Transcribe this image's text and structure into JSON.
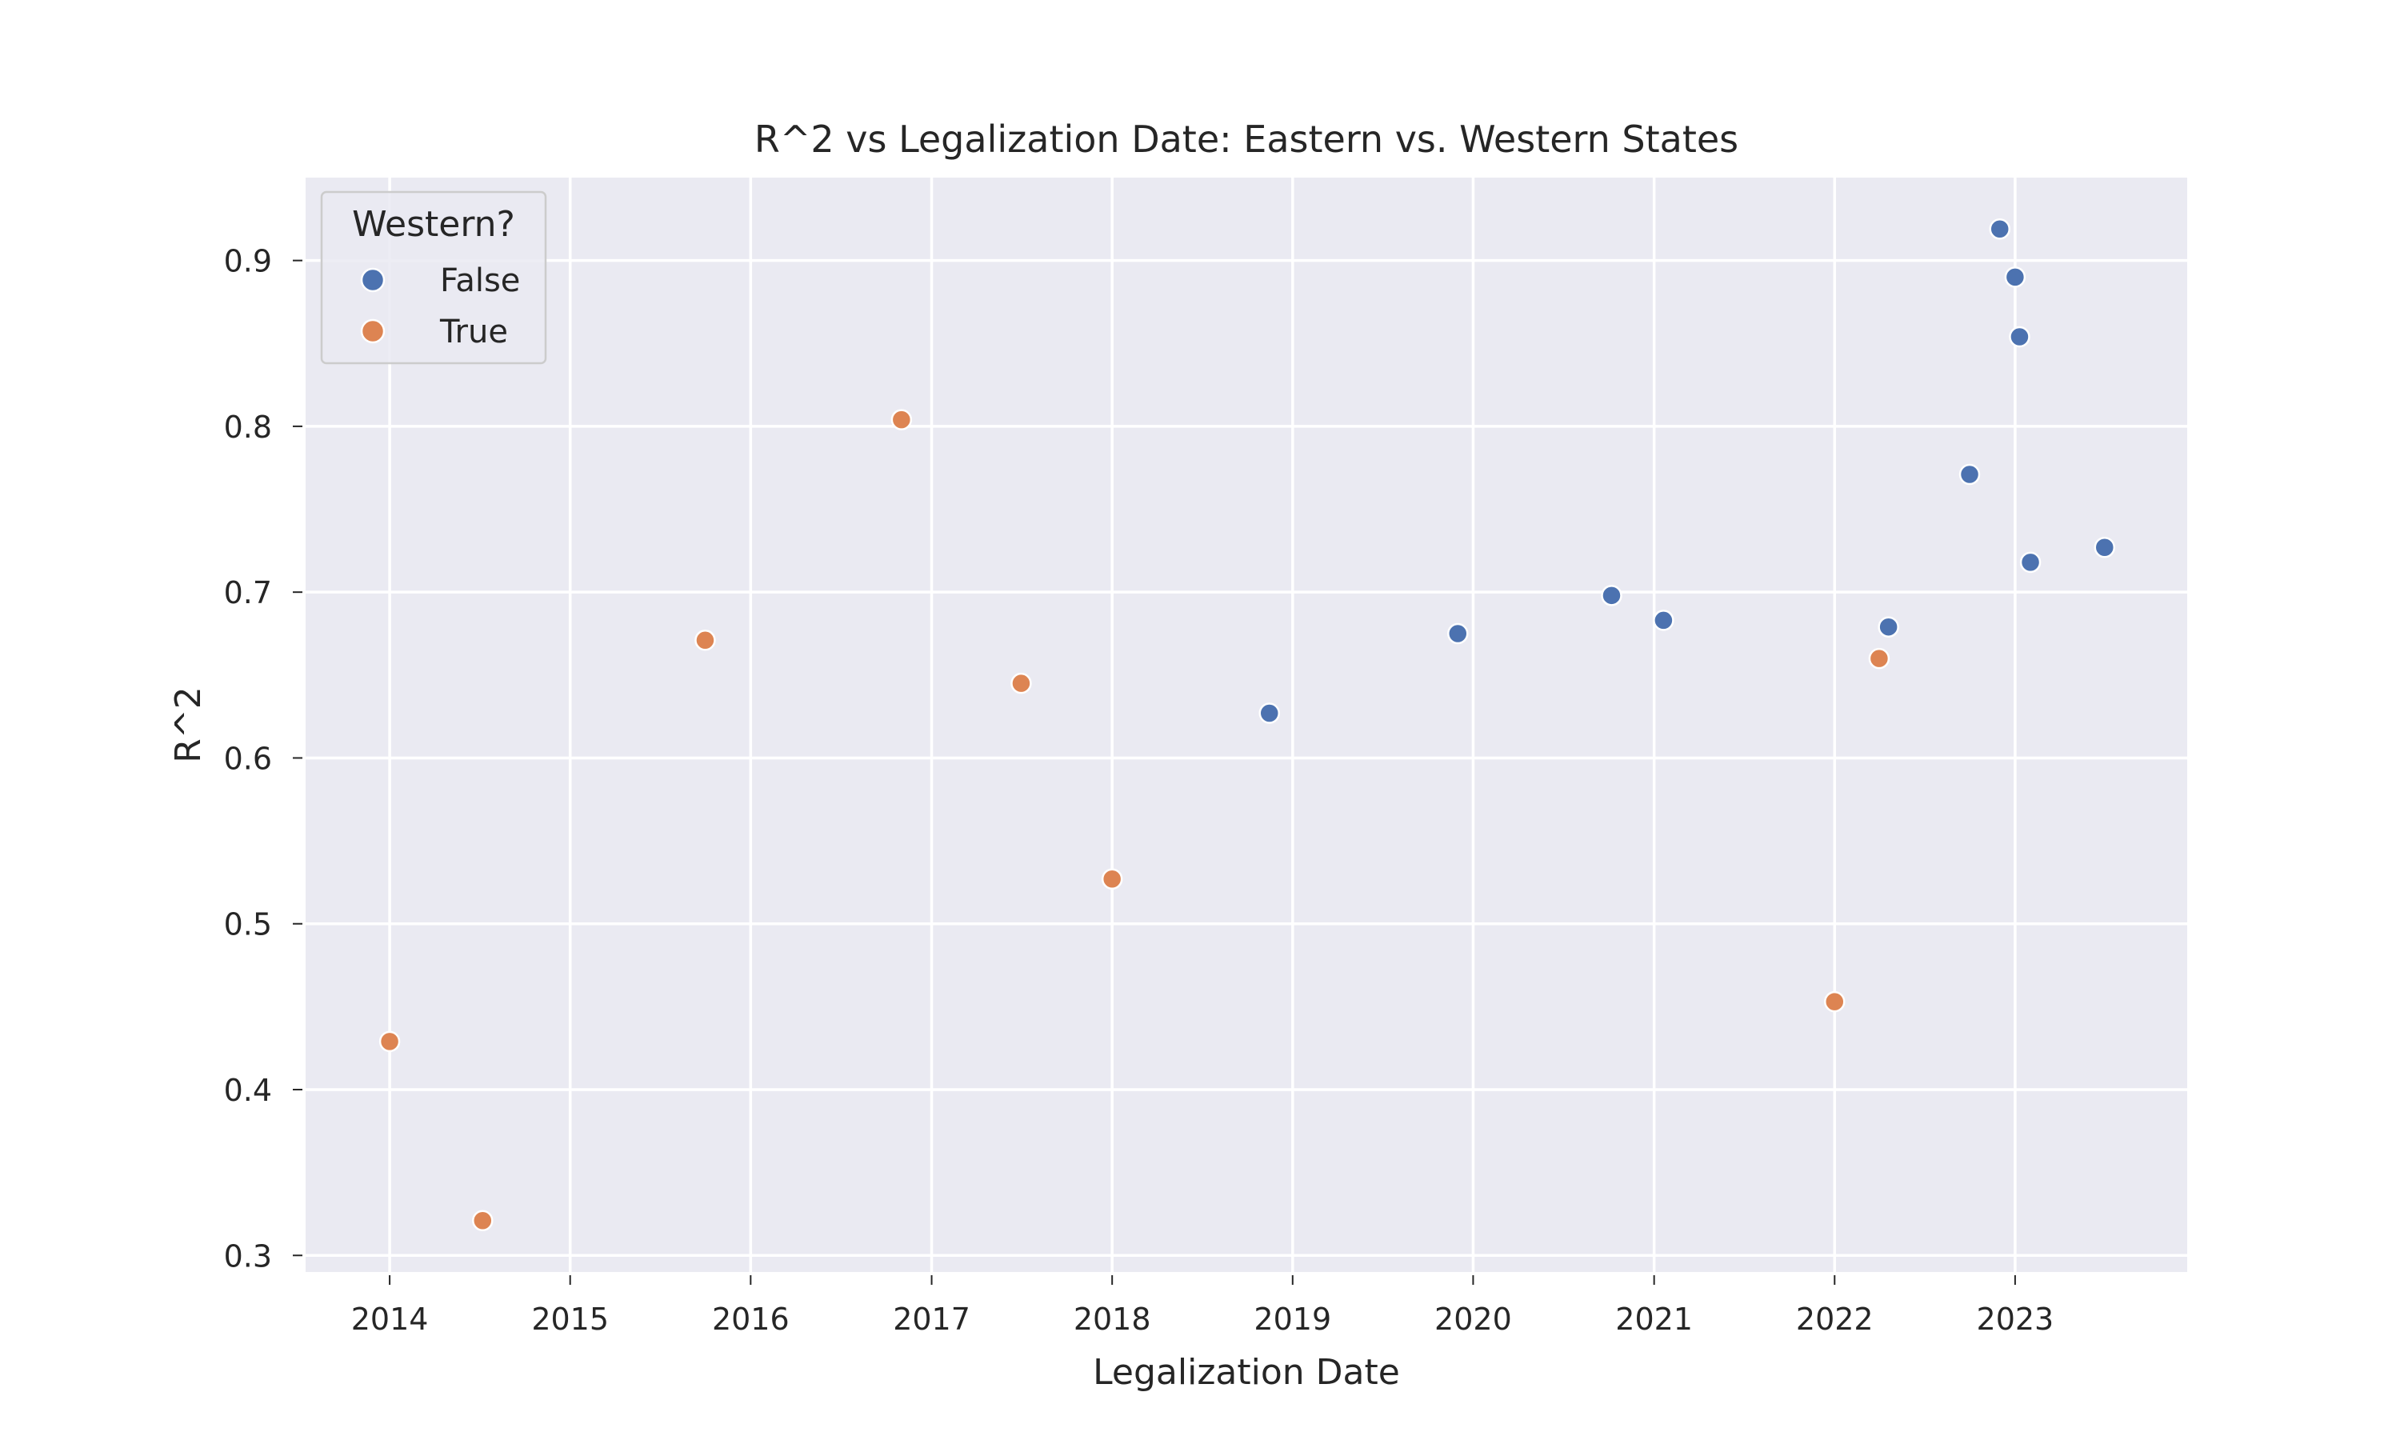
{
  "chart_data": {
    "type": "scatter",
    "title": "R^2 vs Legalization Date: Eastern vs. Western States",
    "xlabel": "Legalization Date",
    "ylabel": "R^2",
    "xlim": [
      "2013-07-15",
      "2023-12-15"
    ],
    "ylim": [
      0.29,
      0.95
    ],
    "xticks": [
      "2014",
      "2015",
      "2016",
      "2017",
      "2018",
      "2019",
      "2020",
      "2021",
      "2022",
      "2023"
    ],
    "yticks": [
      "0.3",
      "0.4",
      "0.5",
      "0.6",
      "0.7",
      "0.8",
      "0.9"
    ],
    "grid": true,
    "legend": {
      "title": "Western?",
      "placement": "upper-left"
    },
    "series": [
      {
        "name": "False",
        "color": "#4c72b0",
        "points": [
          {
            "x": "2018-11-15",
            "y": 0.627
          },
          {
            "x": "2019-12-01",
            "y": 0.675
          },
          {
            "x": "2020-10-07",
            "y": 0.698
          },
          {
            "x": "2021-01-20",
            "y": 0.683
          },
          {
            "x": "2022-04-20",
            "y": 0.679
          },
          {
            "x": "2022-10-01",
            "y": 0.771
          },
          {
            "x": "2022-12-01",
            "y": 0.919
          },
          {
            "x": "2023-01-01",
            "y": 0.89
          },
          {
            "x": "2023-01-10",
            "y": 0.854
          },
          {
            "x": "2023-02-01",
            "y": 0.718
          },
          {
            "x": "2023-07-01",
            "y": 0.727
          }
        ]
      },
      {
        "name": "True",
        "color": "#dd8452",
        "points": [
          {
            "x": "2014-01-01",
            "y": 0.429
          },
          {
            "x": "2014-07-08",
            "y": 0.321
          },
          {
            "x": "2015-10-01",
            "y": 0.671
          },
          {
            "x": "2016-11-01",
            "y": 0.804
          },
          {
            "x": "2017-07-01",
            "y": 0.645
          },
          {
            "x": "2018-01-01",
            "y": 0.527
          },
          {
            "x": "2022-01-01",
            "y": 0.453
          },
          {
            "x": "2022-04-01",
            "y": 0.66
          }
        ]
      }
    ]
  }
}
